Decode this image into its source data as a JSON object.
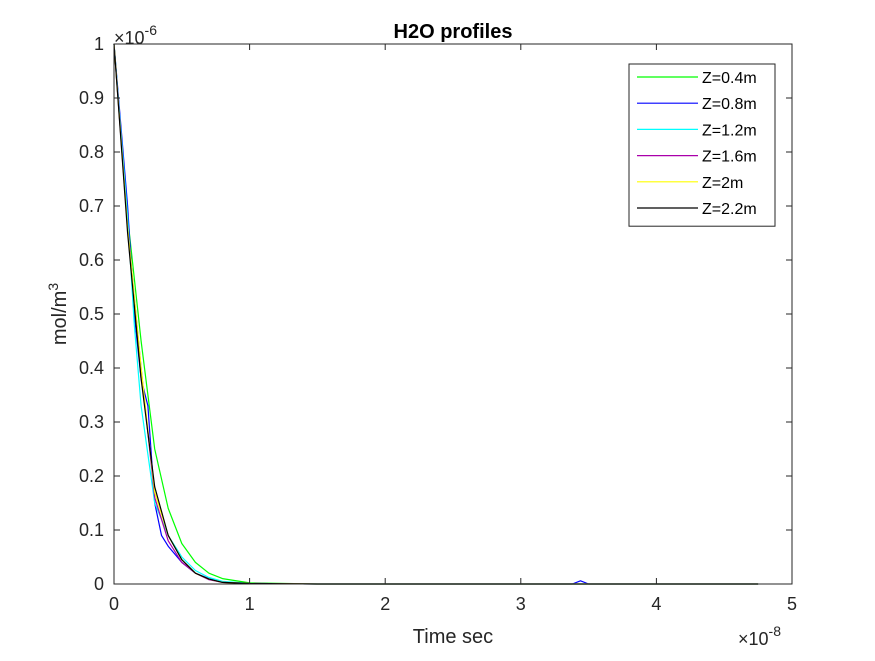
{
  "chart_data": {
    "type": "line",
    "title": "H2O profiles",
    "xlabel": "Time sec",
    "ylabel_base": "mol/m",
    "ylabel_sup": "3",
    "x_multiplier": {
      "base": "×10",
      "exp": "-8"
    },
    "y_multiplier": {
      "base": "×10",
      "exp": "-6"
    },
    "xlim": [
      0,
      5
    ],
    "ylim": [
      0,
      1
    ],
    "xticks": [
      0,
      1,
      2,
      3,
      4,
      5
    ],
    "xtick_labels": [
      "0",
      "1",
      "2",
      "3",
      "4",
      "5"
    ],
    "yticks": [
      0,
      0.1,
      0.2,
      0.3,
      0.4,
      0.5,
      0.6,
      0.7,
      0.8,
      0.9,
      1
    ],
    "ytick_labels": [
      "0",
      "0.1",
      "0.2",
      "0.3",
      "0.4",
      "0.5",
      "0.6",
      "0.7",
      "0.8",
      "0.9",
      "1"
    ],
    "grid": false,
    "legend_position": "top-right",
    "series": [
      {
        "name": "Z=0.4m",
        "color": "#00ff00",
        "points": [
          [
            0,
            1
          ],
          [
            0.1,
            0.68
          ],
          [
            0.2,
            0.45
          ],
          [
            0.3,
            0.25
          ],
          [
            0.4,
            0.14
          ],
          [
            0.5,
            0.075
          ],
          [
            0.6,
            0.04
          ],
          [
            0.7,
            0.02
          ],
          [
            0.8,
            0.01
          ],
          [
            1.0,
            0.002
          ],
          [
            1.5,
            0
          ],
          [
            4.75,
            0
          ]
        ]
      },
      {
        "name": "Z=0.8m",
        "color": "#0000ff",
        "points": [
          [
            0,
            1
          ],
          [
            0.1,
            0.7
          ],
          [
            0.15,
            0.5
          ],
          [
            0.2,
            0.38
          ],
          [
            0.25,
            0.33
          ],
          [
            0.3,
            0.15
          ],
          [
            0.35,
            0.09
          ],
          [
            0.4,
            0.07
          ],
          [
            0.5,
            0.04
          ],
          [
            0.6,
            0.02
          ],
          [
            0.7,
            0.01
          ],
          [
            0.8,
            0.004
          ],
          [
            1.0,
            0.001
          ],
          [
            1.5,
            0
          ],
          [
            3.38,
            0
          ],
          [
            3.44,
            0.006
          ],
          [
            3.5,
            0
          ],
          [
            4.75,
            0
          ]
        ]
      },
      {
        "name": "Z=1.2m",
        "color": "#00ffff",
        "points": [
          [
            0,
            1
          ],
          [
            0.1,
            0.68
          ],
          [
            0.15,
            0.48
          ],
          [
            0.2,
            0.33
          ],
          [
            0.25,
            0.24
          ],
          [
            0.3,
            0.15
          ],
          [
            0.4,
            0.09
          ],
          [
            0.5,
            0.05
          ],
          [
            0.6,
            0.025
          ],
          [
            0.7,
            0.012
          ],
          [
            0.8,
            0.005
          ],
          [
            1.0,
            0.001
          ],
          [
            1.5,
            0
          ],
          [
            4.75,
            0
          ]
        ]
      },
      {
        "name": "Z=1.6m",
        "color": "#aa00aa",
        "points": [
          [
            0,
            1
          ],
          [
            0.1,
            0.66
          ],
          [
            0.2,
            0.4
          ],
          [
            0.3,
            0.16
          ],
          [
            0.4,
            0.08
          ],
          [
            0.5,
            0.04
          ],
          [
            0.6,
            0.02
          ],
          [
            0.7,
            0.008
          ],
          [
            0.8,
            0.003
          ],
          [
            1.0,
            0.001
          ],
          [
            1.5,
            0
          ],
          [
            4.75,
            0
          ]
        ]
      },
      {
        "name": "Z=2m",
        "color": "#ffff00",
        "points": [
          [
            0,
            1
          ],
          [
            0.1,
            0.66
          ],
          [
            0.2,
            0.4
          ],
          [
            0.3,
            0.17
          ],
          [
            0.4,
            0.09
          ],
          [
            0.5,
            0.045
          ],
          [
            0.6,
            0.02
          ],
          [
            0.7,
            0.009
          ],
          [
            0.8,
            0.003
          ],
          [
            1.0,
            0.001
          ],
          [
            1.5,
            0
          ],
          [
            4.75,
            0
          ]
        ]
      },
      {
        "name": "Z=2.2m",
        "color": "#000000",
        "points": [
          [
            0,
            1
          ],
          [
            0.1,
            0.65
          ],
          [
            0.2,
            0.38
          ],
          [
            0.3,
            0.18
          ],
          [
            0.4,
            0.09
          ],
          [
            0.5,
            0.045
          ],
          [
            0.6,
            0.02
          ],
          [
            0.7,
            0.009
          ],
          [
            0.8,
            0.003
          ],
          [
            1.0,
            0.001
          ],
          [
            1.5,
            0
          ],
          [
            4.75,
            0
          ]
        ]
      }
    ]
  }
}
